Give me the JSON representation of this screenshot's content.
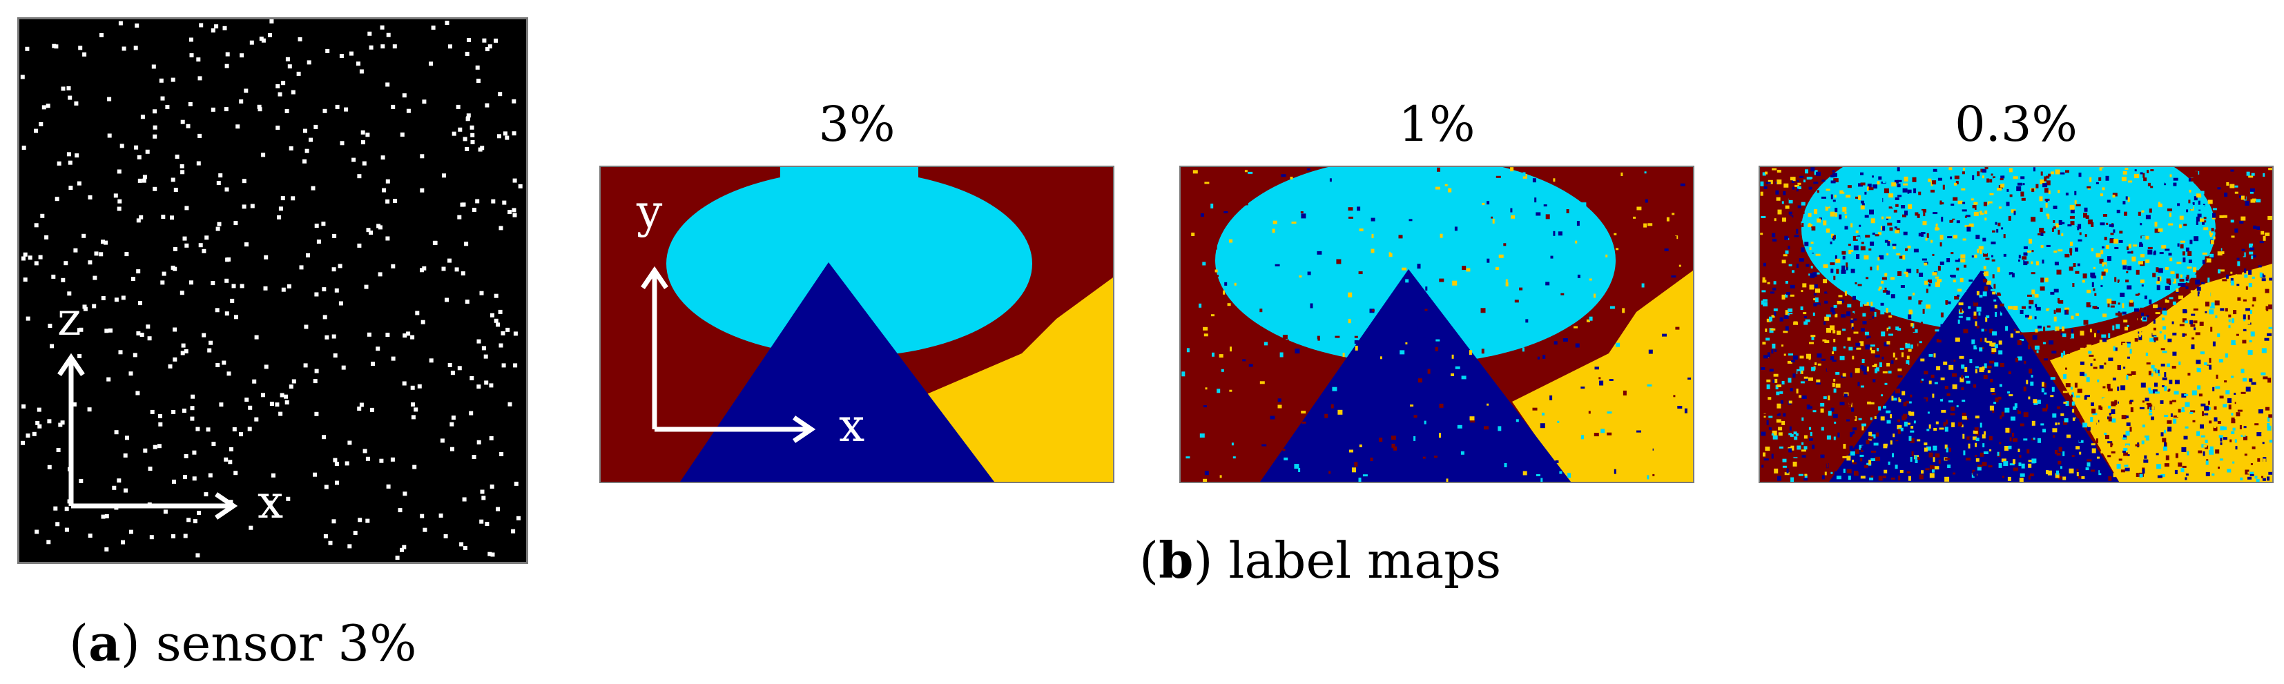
{
  "panel_a": {
    "axis_x_label": "x",
    "axis_z_label": "z",
    "caption_open": "(",
    "caption_letter": "a",
    "caption_rest": ") sensor 3%"
  },
  "panel_b": {
    "axis_x_label": "x",
    "axis_y_label": "y",
    "caption_open": "(",
    "caption_letter": "b",
    "caption_rest": ") label maps",
    "maps": [
      {
        "title": "3%"
      },
      {
        "title": "1%"
      },
      {
        "title": "0.3%"
      }
    ]
  },
  "colors": {
    "background_label": "#7a0000",
    "ellipse_label": "#00d8f5",
    "triangle_label": "#00008f",
    "right_label": "#fccc00",
    "sensor_background": "#000000",
    "sensor_point": "#ffffff"
  }
}
